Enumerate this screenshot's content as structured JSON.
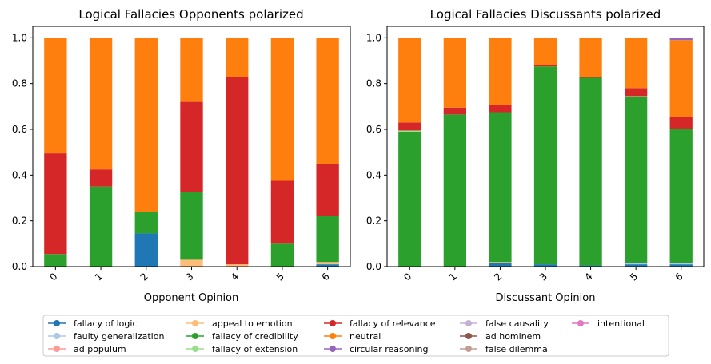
{
  "chart_data": [
    {
      "type": "bar",
      "stacked": true,
      "title": "Logical Fallacies Opponents polarized",
      "xlabel": "Opponent Opinion",
      "ylabel": "",
      "ylim": [
        0,
        1.05
      ],
      "yticks": [
        "0.0",
        "0.2",
        "0.4",
        "0.6",
        "0.8",
        "1.0"
      ],
      "categories": [
        "0",
        "1",
        "2",
        "3",
        "4",
        "5",
        "6"
      ],
      "series": [
        {
          "name": "fallacy of logic",
          "values": [
            0,
            0,
            0.145,
            0,
            0,
            0,
            0.01
          ]
        },
        {
          "name": "faulty generalization",
          "values": [
            0,
            0,
            0,
            0,
            0,
            0,
            0
          ]
        },
        {
          "name": "ad populum",
          "values": [
            0,
            0,
            0,
            0,
            0,
            0,
            0
          ]
        },
        {
          "name": "appeal to emotion",
          "values": [
            0,
            0,
            0,
            0.03,
            0.01,
            0,
            0.01
          ]
        },
        {
          "name": "fallacy of credibility",
          "values": [
            0.055,
            0.35,
            0.095,
            0.295,
            0,
            0.1,
            0.2
          ]
        },
        {
          "name": "fallacy of extension",
          "values": [
            0,
            0,
            0,
            0,
            0,
            0,
            0
          ]
        },
        {
          "name": "fallacy of relevance",
          "values": [
            0.44,
            0.075,
            0,
            0.395,
            0.82,
            0.275,
            0.23
          ]
        },
        {
          "name": "neutral",
          "values": [
            0.505,
            0.575,
            0.76,
            0.28,
            0.17,
            0.625,
            0.55
          ]
        }
      ]
    },
    {
      "type": "bar",
      "stacked": true,
      "title": "Logical Fallacies Discussants polarized",
      "xlabel": "Discussant Opinion",
      "ylabel": "",
      "ylim": [
        0,
        1.05
      ],
      "yticks": [
        "0.0",
        "0.2",
        "0.4",
        "0.6",
        "0.8",
        "1.0"
      ],
      "categories": [
        "0",
        "1",
        "2",
        "3",
        "4",
        "5",
        "6"
      ],
      "series": [
        {
          "name": "fallacy of logic",
          "values": [
            0,
            0,
            0.015,
            0.01,
            0.005,
            0.01,
            0.01
          ]
        },
        {
          "name": "faulty generalization",
          "values": [
            0,
            0,
            0,
            0,
            0,
            0.005,
            0.005
          ]
        },
        {
          "name": "ad populum",
          "values": [
            0,
            0,
            0,
            0,
            0,
            0,
            0
          ]
        },
        {
          "name": "appeal to emotion",
          "values": [
            0,
            0,
            0.005,
            0,
            0,
            0,
            0
          ]
        },
        {
          "name": "fallacy of credibility",
          "values": [
            0.59,
            0.665,
            0.655,
            0.865,
            0.82,
            0.725,
            0.585
          ]
        },
        {
          "name": "fallacy of extension",
          "values": [
            0.005,
            0,
            0,
            0,
            0,
            0.005,
            0
          ]
        },
        {
          "name": "fallacy of relevance",
          "values": [
            0.035,
            0.03,
            0.03,
            0.005,
            0.005,
            0.035,
            0.055
          ]
        },
        {
          "name": "neutral",
          "values": [
            0.37,
            0.305,
            0.295,
            0.12,
            0.17,
            0.22,
            0.335
          ]
        },
        {
          "name": "circular reasoning",
          "values": [
            0,
            0,
            0,
            0,
            0,
            0,
            0.01
          ]
        }
      ]
    }
  ],
  "legend": {
    "placement": "bottom",
    "items": [
      {
        "name": "fallacy of logic",
        "color": "#1f77b4"
      },
      {
        "name": "faulty generalization",
        "color": "#aec7e8"
      },
      {
        "name": "ad populum",
        "color": "#ff9896"
      },
      {
        "name": "appeal to emotion",
        "color": "#ffbb78"
      },
      {
        "name": "fallacy of credibility",
        "color": "#2ca02c"
      },
      {
        "name": "fallacy of extension",
        "color": "#98df8a"
      },
      {
        "name": "fallacy of relevance",
        "color": "#d62728"
      },
      {
        "name": "neutral",
        "color": "#ff7f0e"
      },
      {
        "name": "circular reasoning",
        "color": "#9467bd"
      },
      {
        "name": "false causality",
        "color": "#c5b0d5"
      },
      {
        "name": "ad hominem",
        "color": "#8c564b"
      },
      {
        "name": "false dilemma",
        "color": "#c49c94"
      },
      {
        "name": "intentional",
        "color": "#e377c2"
      }
    ]
  }
}
